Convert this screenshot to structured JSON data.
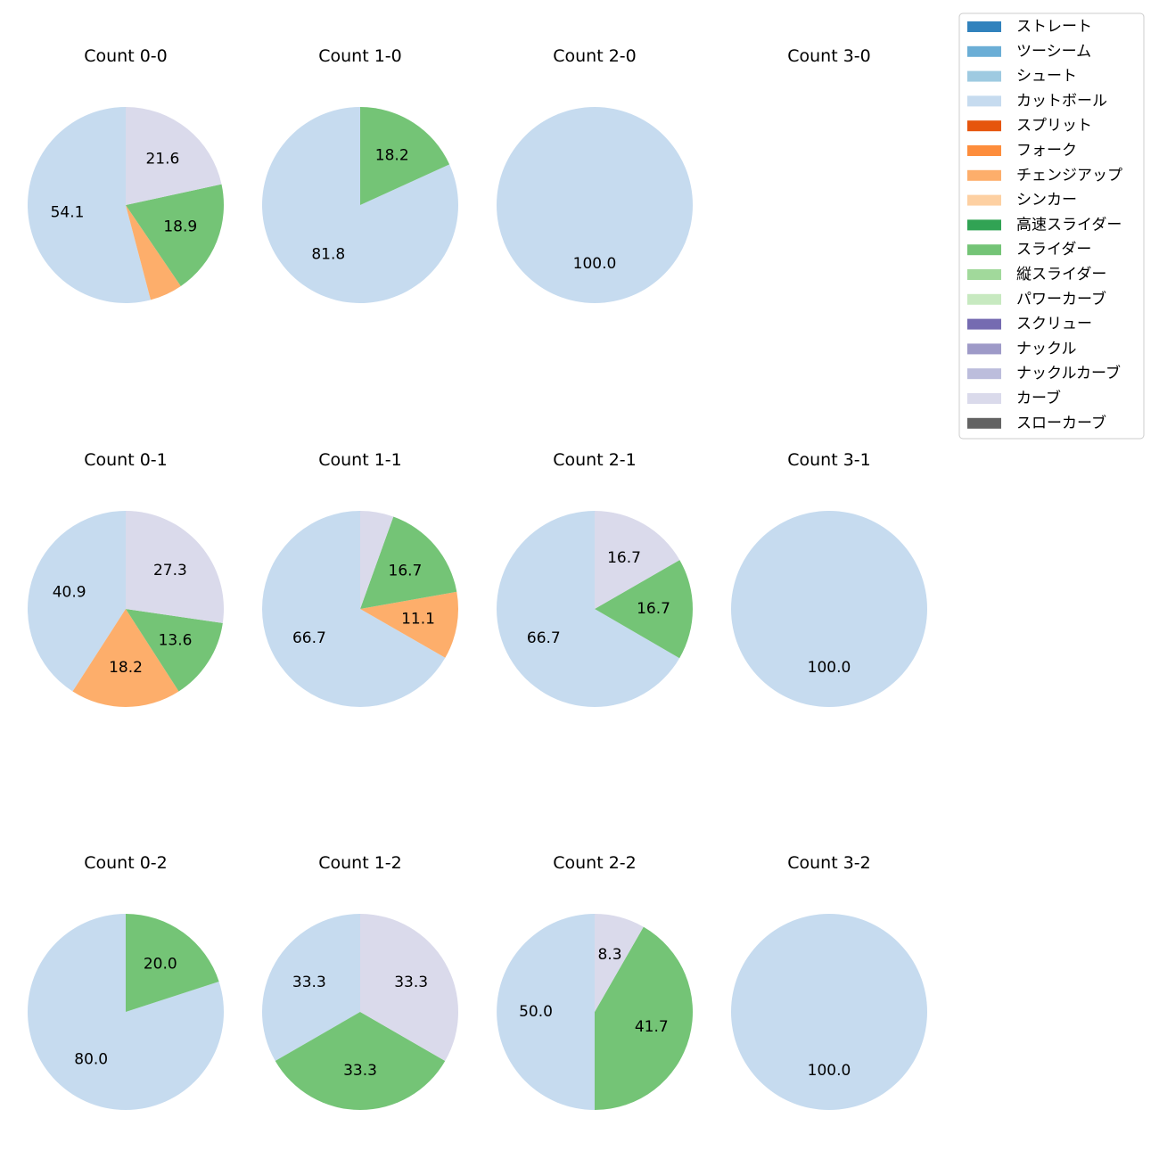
{
  "chart_data": [
    {
      "type": "pie",
      "title": "Count 0-0",
      "slices": [
        {
          "category": "カットボール",
          "value": 54.1,
          "label": "54.1"
        },
        {
          "category": "チェンジアップ",
          "value": 5.4,
          "label": ""
        },
        {
          "category": "スライダー",
          "value": 18.9,
          "label": "18.9"
        },
        {
          "category": "カーブ",
          "value": 21.6,
          "label": "21.6"
        }
      ]
    },
    {
      "type": "pie",
      "title": "Count 1-0",
      "slices": [
        {
          "category": "カットボール",
          "value": 81.8,
          "label": "81.8"
        },
        {
          "category": "スライダー",
          "value": 18.2,
          "label": "18.2"
        }
      ]
    },
    {
      "type": "pie",
      "title": "Count 2-0",
      "slices": [
        {
          "category": "カットボール",
          "value": 100.0,
          "label": "100.0"
        }
      ]
    },
    {
      "type": "pie",
      "title": "Count 3-0",
      "slices": []
    },
    {
      "type": "pie",
      "title": "Count 0-1",
      "slices": [
        {
          "category": "カットボール",
          "value": 40.9,
          "label": "40.9"
        },
        {
          "category": "チェンジアップ",
          "value": 18.2,
          "label": "18.2"
        },
        {
          "category": "スライダー",
          "value": 13.6,
          "label": "13.6"
        },
        {
          "category": "カーブ",
          "value": 27.3,
          "label": "27.3"
        }
      ]
    },
    {
      "type": "pie",
      "title": "Count 1-1",
      "slices": [
        {
          "category": "カットボール",
          "value": 66.7,
          "label": "66.7"
        },
        {
          "category": "チェンジアップ",
          "value": 11.1,
          "label": "11.1"
        },
        {
          "category": "スライダー",
          "value": 16.7,
          "label": "16.7"
        },
        {
          "category": "カーブ",
          "value": 5.5,
          "label": ""
        }
      ]
    },
    {
      "type": "pie",
      "title": "Count 2-1",
      "slices": [
        {
          "category": "カットボール",
          "value": 66.7,
          "label": "66.7"
        },
        {
          "category": "スライダー",
          "value": 16.7,
          "label": "16.7"
        },
        {
          "category": "カーブ",
          "value": 16.7,
          "label": "16.7"
        }
      ]
    },
    {
      "type": "pie",
      "title": "Count 3-1",
      "slices": [
        {
          "category": "カットボール",
          "value": 100.0,
          "label": "100.0"
        }
      ]
    },
    {
      "type": "pie",
      "title": "Count 0-2",
      "slices": [
        {
          "category": "カットボール",
          "value": 80.0,
          "label": "80.0"
        },
        {
          "category": "スライダー",
          "value": 20.0,
          "label": "20.0"
        }
      ]
    },
    {
      "type": "pie",
      "title": "Count 1-2",
      "slices": [
        {
          "category": "カットボール",
          "value": 33.3,
          "label": "33.3"
        },
        {
          "category": "スライダー",
          "value": 33.3,
          "label": "33.3"
        },
        {
          "category": "カーブ",
          "value": 33.3,
          "label": "33.3"
        }
      ]
    },
    {
      "type": "pie",
      "title": "Count 2-2",
      "slices": [
        {
          "category": "カットボール",
          "value": 50.0,
          "label": "50.0"
        },
        {
          "category": "スライダー",
          "value": 41.7,
          "label": "41.7"
        },
        {
          "category": "カーブ",
          "value": 8.3,
          "label": "8.3"
        }
      ]
    },
    {
      "type": "pie",
      "title": "Count 3-2",
      "slices": [
        {
          "category": "カットボール",
          "value": 100.0,
          "label": "100.0"
        }
      ]
    }
  ],
  "legend": {
    "position": "top-right",
    "entries": [
      {
        "label": "ストレート",
        "color": "#3182bd"
      },
      {
        "label": "ツーシーム",
        "color": "#6baed6"
      },
      {
        "label": "シュート",
        "color": "#9ecae1"
      },
      {
        "label": "カットボール",
        "color": "#c6dbef"
      },
      {
        "label": "スプリット",
        "color": "#e6550d"
      },
      {
        "label": "フォーク",
        "color": "#fd8d3c"
      },
      {
        "label": "チェンジアップ",
        "color": "#fdae6b"
      },
      {
        "label": "シンカー",
        "color": "#fdd0a2"
      },
      {
        "label": "高速スライダー",
        "color": "#31a354"
      },
      {
        "label": "スライダー",
        "color": "#74c476"
      },
      {
        "label": "縦スライダー",
        "color": "#a1d99b"
      },
      {
        "label": "パワーカーブ",
        "color": "#c7e9c0"
      },
      {
        "label": "スクリュー",
        "color": "#756bb1"
      },
      {
        "label": "ナックル",
        "color": "#9e9ac8"
      },
      {
        "label": "ナックルカーブ",
        "color": "#bcbddc"
      },
      {
        "label": "カーブ",
        "color": "#dadaeb"
      },
      {
        "label": "スローカーブ",
        "color": "#636363"
      }
    ]
  }
}
